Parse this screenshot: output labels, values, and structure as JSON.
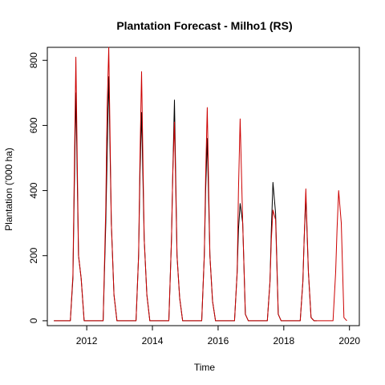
{
  "chart_data": {
    "type": "line",
    "title": "Plantation Forecast - Milho1 (RS)",
    "xlabel": "Time",
    "ylabel": "Plantation ('000 ha)",
    "xlim": [
      2010.8,
      2020.3
    ],
    "ylim": [
      -15,
      840
    ],
    "x_ticks": [
      2012,
      2014,
      2016,
      2018,
      2020
    ],
    "y_ticks": [
      0,
      200,
      400,
      600,
      800
    ],
    "grid": false,
    "legend": "none",
    "series": [
      {
        "color": "#000000",
        "points": [
          [
            2011.0,
            0
          ],
          [
            2011.5,
            0
          ],
          [
            2011.58,
            130
          ],
          [
            2011.62,
            400
          ],
          [
            2011.67,
            700
          ],
          [
            2011.75,
            200
          ],
          [
            2011.83,
            130
          ],
          [
            2011.92,
            0
          ],
          [
            2012.0,
            0
          ],
          [
            2012.5,
            0
          ],
          [
            2012.58,
            300
          ],
          [
            2012.62,
            500
          ],
          [
            2012.67,
            750
          ],
          [
            2012.75,
            300
          ],
          [
            2012.83,
            80
          ],
          [
            2012.92,
            0
          ],
          [
            2013.0,
            0
          ],
          [
            2013.5,
            0
          ],
          [
            2013.58,
            200
          ],
          [
            2013.62,
            450
          ],
          [
            2013.67,
            640
          ],
          [
            2013.75,
            250
          ],
          [
            2013.83,
            80
          ],
          [
            2013.92,
            0
          ],
          [
            2014.0,
            0
          ],
          [
            2014.5,
            0
          ],
          [
            2014.58,
            250
          ],
          [
            2014.62,
            450
          ],
          [
            2014.67,
            678
          ],
          [
            2014.75,
            200
          ],
          [
            2014.83,
            70
          ],
          [
            2014.92,
            0
          ],
          [
            2015.0,
            0
          ],
          [
            2015.5,
            0
          ],
          [
            2015.58,
            200
          ],
          [
            2015.62,
            400
          ],
          [
            2015.67,
            560
          ],
          [
            2015.75,
            200
          ],
          [
            2015.83,
            60
          ],
          [
            2015.92,
            0
          ],
          [
            2016.0,
            0
          ],
          [
            2016.5,
            0
          ],
          [
            2016.58,
            150
          ],
          [
            2016.62,
            280
          ],
          [
            2016.67,
            360
          ],
          [
            2016.75,
            300
          ],
          [
            2016.83,
            20
          ],
          [
            2016.92,
            0
          ],
          [
            2017.0,
            0
          ],
          [
            2017.5,
            0
          ],
          [
            2017.58,
            120
          ],
          [
            2017.62,
            280
          ],
          [
            2017.67,
            425
          ],
          [
            2017.75,
            330
          ],
          [
            2017.83,
            20
          ],
          [
            2017.92,
            0
          ],
          [
            2018.0,
            0
          ],
          [
            2018.5,
            0
          ],
          [
            2018.58,
            120
          ],
          [
            2018.62,
            250
          ],
          [
            2018.67,
            380
          ],
          [
            2018.75,
            150
          ],
          [
            2018.83,
            10
          ],
          [
            2018.92,
            0
          ],
          [
            2019.0,
            0
          ]
        ]
      },
      {
        "color": "#cc0000",
        "points": [
          [
            2011.0,
            0
          ],
          [
            2011.5,
            0
          ],
          [
            2011.58,
            140
          ],
          [
            2011.62,
            450
          ],
          [
            2011.67,
            810
          ],
          [
            2011.75,
            200
          ],
          [
            2011.83,
            130
          ],
          [
            2011.92,
            0
          ],
          [
            2012.0,
            0
          ],
          [
            2012.5,
            0
          ],
          [
            2012.58,
            350
          ],
          [
            2012.62,
            650
          ],
          [
            2012.67,
            840
          ],
          [
            2012.75,
            300
          ],
          [
            2012.83,
            80
          ],
          [
            2012.92,
            0
          ],
          [
            2013.0,
            0
          ],
          [
            2013.5,
            0
          ],
          [
            2013.58,
            200
          ],
          [
            2013.62,
            500
          ],
          [
            2013.67,
            765
          ],
          [
            2013.75,
            250
          ],
          [
            2013.83,
            80
          ],
          [
            2013.92,
            0
          ],
          [
            2014.0,
            0
          ],
          [
            2014.5,
            0
          ],
          [
            2014.58,
            250
          ],
          [
            2014.62,
            450
          ],
          [
            2014.67,
            610
          ],
          [
            2014.75,
            200
          ],
          [
            2014.83,
            70
          ],
          [
            2014.92,
            0
          ],
          [
            2015.0,
            0
          ],
          [
            2015.5,
            0
          ],
          [
            2015.58,
            200
          ],
          [
            2015.62,
            450
          ],
          [
            2015.67,
            655
          ],
          [
            2015.75,
            200
          ],
          [
            2015.83,
            60
          ],
          [
            2015.92,
            0
          ],
          [
            2016.0,
            0
          ],
          [
            2016.5,
            0
          ],
          [
            2016.58,
            150
          ],
          [
            2016.62,
            400
          ],
          [
            2016.67,
            620
          ],
          [
            2016.75,
            300
          ],
          [
            2016.83,
            20
          ],
          [
            2016.92,
            0
          ],
          [
            2017.0,
            0
          ],
          [
            2017.5,
            0
          ],
          [
            2017.58,
            120
          ],
          [
            2017.62,
            250
          ],
          [
            2017.67,
            340
          ],
          [
            2017.75,
            310
          ],
          [
            2017.83,
            20
          ],
          [
            2017.92,
            0
          ],
          [
            2018.0,
            0
          ],
          [
            2018.5,
            0
          ],
          [
            2018.58,
            120
          ],
          [
            2018.62,
            250
          ],
          [
            2018.67,
            405
          ],
          [
            2018.75,
            150
          ],
          [
            2018.83,
            10
          ],
          [
            2018.92,
            0
          ],
          [
            2019.0,
            0
          ],
          [
            2019.5,
            0
          ],
          [
            2019.58,
            150
          ],
          [
            2019.62,
            280
          ],
          [
            2019.67,
            400
          ],
          [
            2019.75,
            300
          ],
          [
            2019.83,
            10
          ],
          [
            2019.92,
            0
          ]
        ]
      }
    ]
  }
}
